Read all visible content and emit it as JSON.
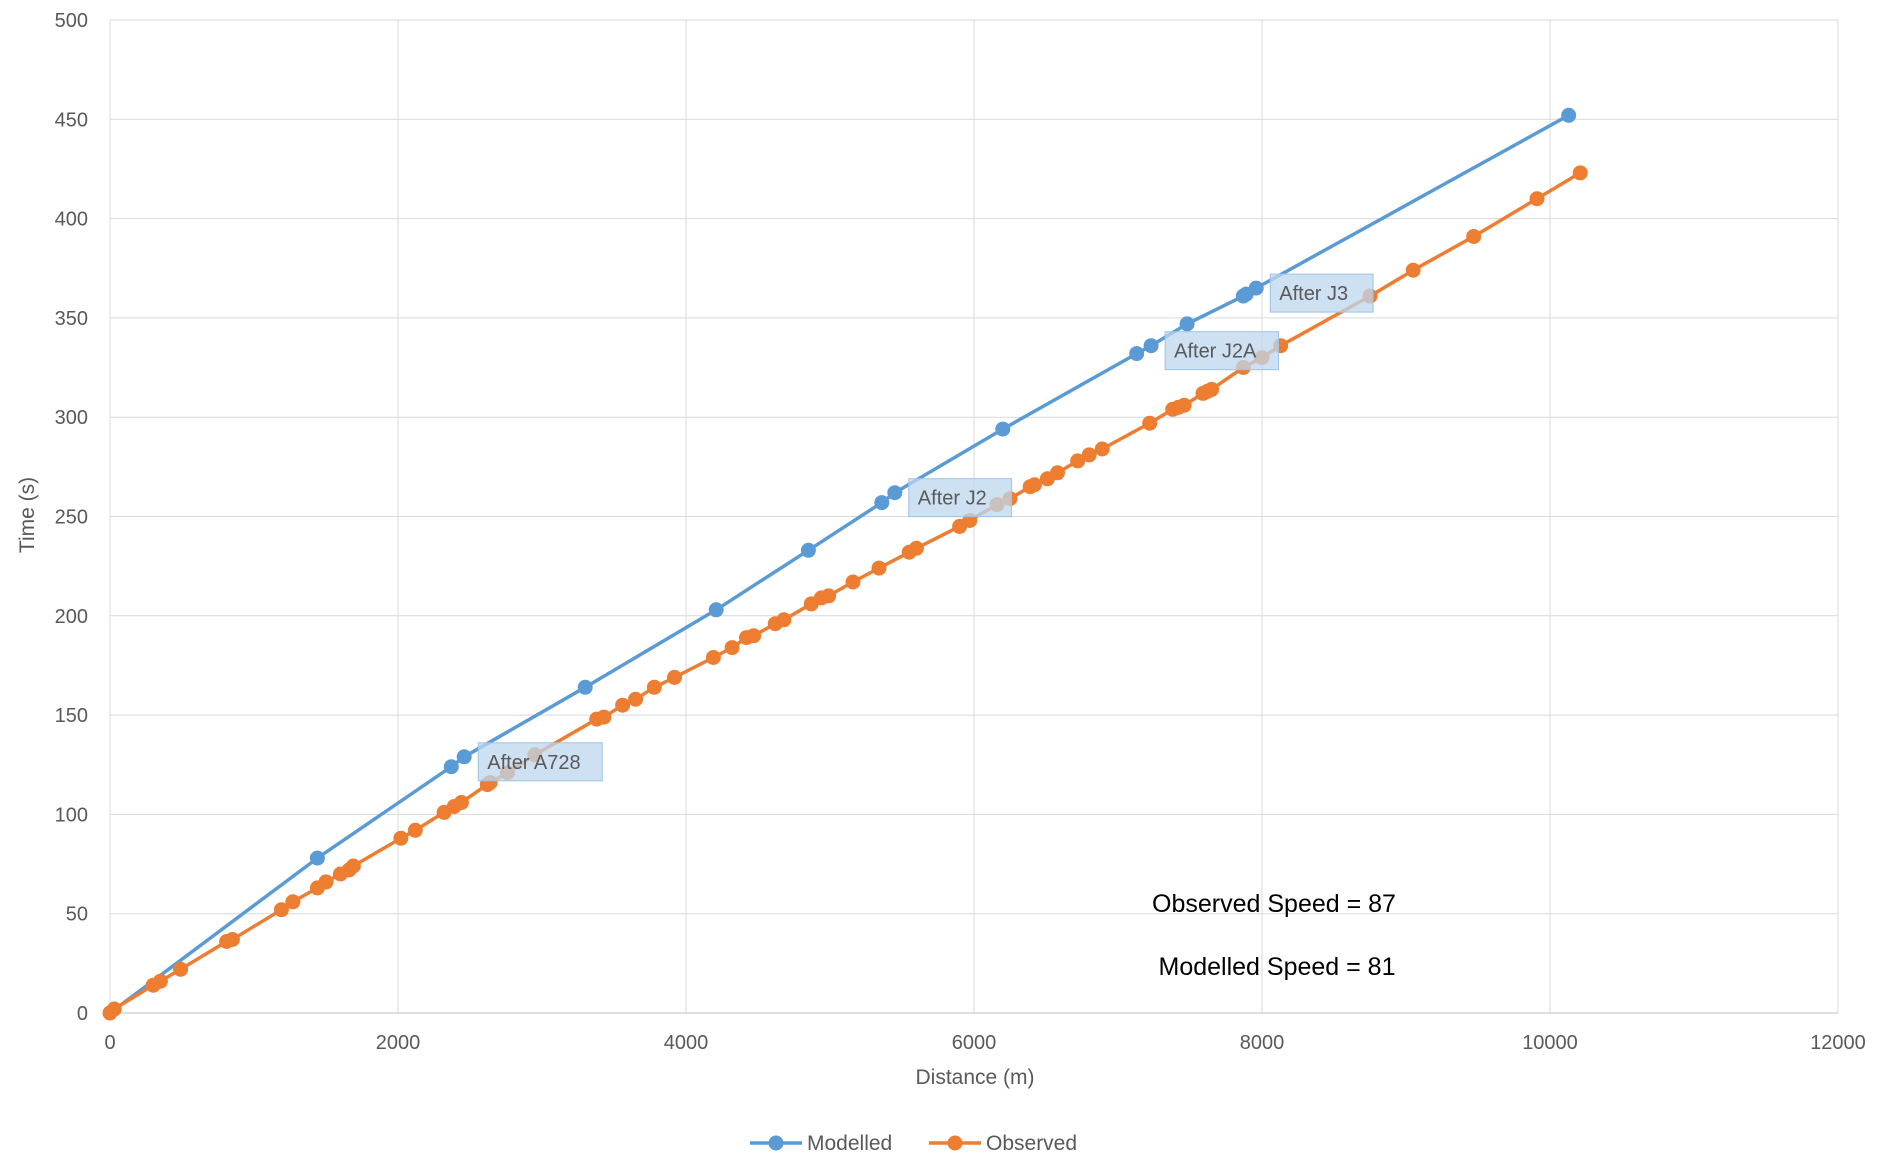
{
  "chart_data": {
    "type": "line",
    "xlabel": "Distance (m)",
    "ylabel": "Time (s)",
    "xlim": [
      0,
      12000
    ],
    "ylim": [
      0,
      500
    ],
    "x_ticks": [
      0,
      2000,
      4000,
      6000,
      8000,
      10000,
      12000
    ],
    "y_ticks": [
      0,
      50,
      100,
      150,
      200,
      250,
      300,
      350,
      400,
      450,
      500
    ],
    "grid": true,
    "legend_position": "bottom",
    "series": [
      {
        "name": "Modelled",
        "color": "#5B9BD5",
        "points": [
          [
            0,
            0
          ],
          [
            1440,
            78
          ],
          [
            2370,
            124
          ],
          [
            2460,
            129
          ],
          [
            3300,
            164
          ],
          [
            4210,
            203
          ],
          [
            4850,
            233
          ],
          [
            5360,
            257
          ],
          [
            5450,
            262
          ],
          [
            6200,
            294
          ],
          [
            7130,
            332
          ],
          [
            7230,
            336
          ],
          [
            7480,
            347
          ],
          [
            7870,
            361
          ],
          [
            7890,
            362
          ],
          [
            7960,
            365
          ],
          [
            10130,
            452
          ]
        ]
      },
      {
        "name": "Observed",
        "color": "#ED7D31",
        "points": [
          [
            0,
            0
          ],
          [
            30,
            2
          ],
          [
            300,
            14
          ],
          [
            350,
            16
          ],
          [
            490,
            22
          ],
          [
            810,
            36
          ],
          [
            850,
            37
          ],
          [
            1190,
            52
          ],
          [
            1270,
            56
          ],
          [
            1440,
            63
          ],
          [
            1500,
            66
          ],
          [
            1600,
            70
          ],
          [
            1660,
            72
          ],
          [
            1690,
            74
          ],
          [
            2020,
            88
          ],
          [
            2120,
            92
          ],
          [
            2320,
            101
          ],
          [
            2390,
            104
          ],
          [
            2440,
            106
          ],
          [
            2620,
            115
          ],
          [
            2640,
            116
          ],
          [
            2760,
            121
          ],
          [
            2950,
            130
          ],
          [
            3380,
            148
          ],
          [
            3430,
            149
          ],
          [
            3560,
            155
          ],
          [
            3650,
            158
          ],
          [
            3780,
            164
          ],
          [
            3920,
            169
          ],
          [
            4190,
            179
          ],
          [
            4320,
            184
          ],
          [
            4420,
            189
          ],
          [
            4470,
            190
          ],
          [
            4620,
            196
          ],
          [
            4680,
            198
          ],
          [
            4870,
            206
          ],
          [
            4940,
            209
          ],
          [
            4990,
            210
          ],
          [
            5160,
            217
          ],
          [
            5340,
            224
          ],
          [
            5550,
            232
          ],
          [
            5600,
            234
          ],
          [
            5900,
            245
          ],
          [
            5970,
            248
          ],
          [
            6160,
            256
          ],
          [
            6250,
            259
          ],
          [
            6390,
            265
          ],
          [
            6420,
            266
          ],
          [
            6510,
            269
          ],
          [
            6580,
            272
          ],
          [
            6720,
            278
          ],
          [
            6800,
            281
          ],
          [
            6890,
            284
          ],
          [
            7220,
            297
          ],
          [
            7380,
            304
          ],
          [
            7420,
            305
          ],
          [
            7460,
            306
          ],
          [
            7590,
            312
          ],
          [
            7620,
            313
          ],
          [
            7650,
            314
          ],
          [
            7870,
            325
          ],
          [
            8000,
            330
          ],
          [
            8130,
            336
          ],
          [
            8750,
            361
          ],
          [
            9050,
            374
          ],
          [
            9470,
            391
          ],
          [
            9910,
            410
          ],
          [
            10210,
            423
          ]
        ]
      }
    ],
    "annotations": [
      {
        "label": "After A728",
        "x": 2460,
        "y": 129
      },
      {
        "label": "After J2",
        "x": 5450,
        "y": 262
      },
      {
        "label": "After J2A",
        "x": 7230,
        "y": 336
      },
      {
        "label": "After J3",
        "x": 7960,
        "y": 365
      }
    ],
    "notes": [
      "Observed Speed = 87",
      "Modelled Speed = 81"
    ]
  }
}
